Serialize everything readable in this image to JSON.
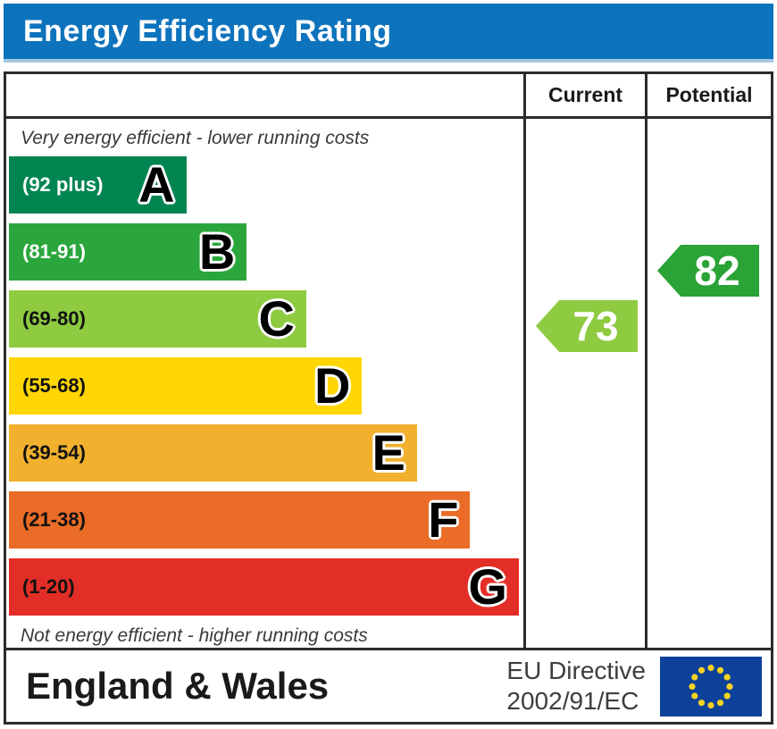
{
  "header": {
    "title": "Energy Efficiency Rating"
  },
  "table": {
    "current_label": "Current",
    "potential_label": "Potential"
  },
  "footer": {
    "region": "England & Wales",
    "directive_line1": "EU Directive",
    "directive_line2": "2002/91/EC",
    "flag": "eu-flag"
  },
  "colors": {
    "title_bar": "#0d73bd",
    "border": "#2b2b2b",
    "eu_flag_blue": "#0e419a",
    "eu_flag_stars": "#f5d221"
  },
  "chart_data": {
    "type": "bar",
    "title": "Energy Efficiency Rating",
    "top_annotation": "Very energy efficient - lower running costs",
    "bottom_annotation": "Not energy efficient - higher running costs",
    "columns": [
      "Current",
      "Potential"
    ],
    "categories": [
      "A",
      "B",
      "C",
      "D",
      "E",
      "F",
      "G"
    ],
    "bands": [
      {
        "letter": "A",
        "range": "(92 plus)",
        "color": "#008551",
        "range_color": "#ffffff",
        "width_pct": 34.3
      },
      {
        "letter": "B",
        "range": "(81-91)",
        "color": "#2ba63c",
        "range_color": "#ffffff",
        "width_pct": 46.0
      },
      {
        "letter": "C",
        "range": "(69-80)",
        "color": "#8ecb41",
        "range_color": "#111111",
        "width_pct": 57.5
      },
      {
        "letter": "D",
        "range": "(55-68)",
        "color": "#ffd604",
        "range_color": "#111111",
        "width_pct": 68.3
      },
      {
        "letter": "E",
        "range": "(39-54)",
        "color": "#f1b02e",
        "range_color": "#111111",
        "width_pct": 78.9
      },
      {
        "letter": "F",
        "range": "(21-38)",
        "color": "#ea6c26",
        "range_color": "#111111",
        "width_pct": 89.2
      },
      {
        "letter": "G",
        "range": "(1-20)",
        "color": "#e22e26",
        "range_color": "#111111",
        "width_pct": 98.6
      }
    ],
    "current": {
      "value": 73,
      "band": "C",
      "color": "#8ecb41"
    },
    "potential": {
      "value": 82,
      "band": "B",
      "color": "#2aa337"
    }
  }
}
